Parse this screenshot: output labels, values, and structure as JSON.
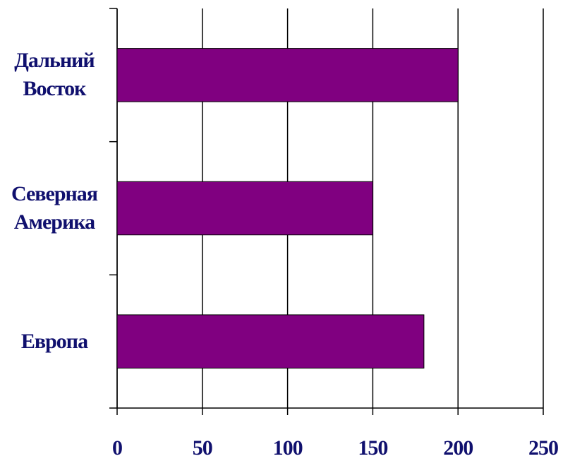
{
  "chart_data": {
    "type": "bar",
    "orientation": "horizontal",
    "categories": [
      "Дальний Восток",
      "Северная Америка",
      "Европа"
    ],
    "values": [
      200,
      150,
      180
    ],
    "color": "#800080",
    "xlim": [
      0,
      250
    ],
    "xticks": [
      0,
      50,
      100,
      150,
      200,
      250
    ],
    "grid": true
  }
}
